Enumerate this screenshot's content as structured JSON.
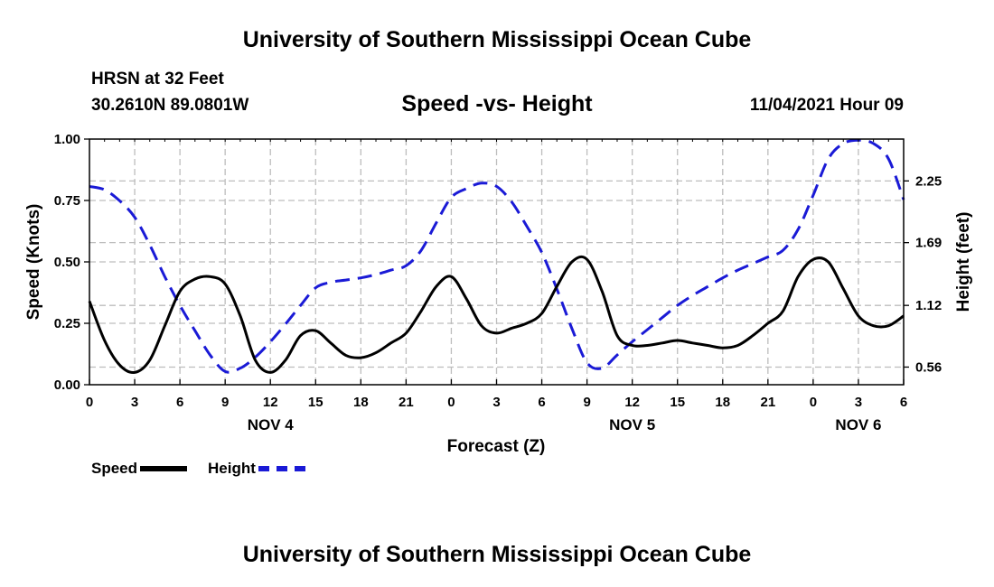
{
  "header": {
    "main_title": "University of Southern Mississippi Ocean Cube",
    "station": "HRSN at 32 Feet",
    "coords": "30.2610N  89.0801W",
    "date": "11/04/2021 Hour 09",
    "bottom_title": "University of Southern Mississippi Ocean Cube"
  },
  "colors": {
    "speed": "#000000",
    "height": "#1a1ad6",
    "grid": "#bdbdbd"
  },
  "chart_data": {
    "type": "line",
    "title": "Speed -vs- Height",
    "xlabel": "Forecast (Z)",
    "ylabel": "Speed (Knots)",
    "y2label": "Height (feet)",
    "x_unit": "hours from Nov 4 00Z",
    "xlim": [
      0,
      54
    ],
    "ylim": [
      0,
      1
    ],
    "y2lim": [
      0.4,
      2.63
    ],
    "x_ticks": [
      0,
      3,
      6,
      9,
      12,
      15,
      18,
      21,
      24,
      27,
      30,
      33,
      36,
      39,
      42,
      45,
      48,
      51,
      54
    ],
    "x_tick_labels": [
      "0",
      "3",
      "6",
      "9",
      "12",
      "15",
      "18",
      "21",
      "0",
      "3",
      "6",
      "9",
      "12",
      "15",
      "18",
      "21",
      "0",
      "3",
      "6"
    ],
    "y_ticks": [
      0,
      0.25,
      0.5,
      0.75,
      1
    ],
    "y_tick_labels": [
      "0.00",
      "0.25",
      "0.50",
      "0.75",
      "1.00"
    ],
    "y2_ticks": [
      0.56,
      1.12,
      1.69,
      2.25
    ],
    "y2_tick_labels": [
      "0.56",
      "1.12",
      "1.69",
      "2.25"
    ],
    "day_labels": [
      {
        "x": 12,
        "label": "NOV 4"
      },
      {
        "x": 36,
        "label": "NOV 5"
      },
      {
        "x": 51,
        "label": "NOV 6"
      }
    ],
    "series": [
      {
        "name": "Speed",
        "axis": "left",
        "x": [
          0,
          1,
          2,
          3,
          4,
          5,
          6,
          7,
          8,
          9,
          10,
          11,
          12,
          13,
          14,
          15,
          16,
          17,
          18,
          19,
          20,
          21,
          22,
          23,
          24,
          25,
          26,
          27,
          28,
          29,
          30,
          31,
          32,
          33,
          34,
          35,
          36,
          37,
          38,
          39,
          40,
          41,
          42,
          43,
          44,
          45,
          46,
          47,
          48,
          49,
          50,
          51,
          52,
          53,
          54
        ],
        "values": [
          0.34,
          0.18,
          0.08,
          0.05,
          0.1,
          0.24,
          0.38,
          0.43,
          0.44,
          0.41,
          0.28,
          0.1,
          0.05,
          0.1,
          0.2,
          0.22,
          0.17,
          0.12,
          0.11,
          0.13,
          0.17,
          0.21,
          0.3,
          0.4,
          0.44,
          0.35,
          0.24,
          0.21,
          0.23,
          0.25,
          0.29,
          0.4,
          0.5,
          0.51,
          0.38,
          0.2,
          0.16,
          0.16,
          0.17,
          0.18,
          0.17,
          0.16,
          0.15,
          0.16,
          0.2,
          0.25,
          0.3,
          0.44,
          0.51,
          0.5,
          0.39,
          0.28,
          0.24,
          0.24,
          0.28
        ]
      },
      {
        "name": "Height",
        "axis": "right",
        "x": [
          0,
          1,
          2,
          3,
          4,
          5,
          6,
          7,
          8,
          9,
          10,
          11,
          12,
          13,
          14,
          15,
          16,
          17,
          18,
          19,
          20,
          21,
          22,
          23,
          24,
          25,
          26,
          27,
          28,
          29,
          30,
          31,
          32,
          33,
          34,
          35,
          36,
          37,
          38,
          39,
          40,
          41,
          42,
          43,
          44,
          45,
          46,
          47,
          48,
          49,
          50,
          51,
          52,
          53,
          54
        ],
        "values": [
          2.2,
          2.17,
          2.07,
          1.92,
          1.67,
          1.38,
          1.12,
          0.89,
          0.67,
          0.52,
          0.55,
          0.65,
          0.79,
          0.95,
          1.12,
          1.28,
          1.33,
          1.35,
          1.37,
          1.4,
          1.44,
          1.48,
          1.62,
          1.87,
          2.1,
          2.18,
          2.23,
          2.2,
          2.06,
          1.84,
          1.6,
          1.27,
          0.91,
          0.6,
          0.55,
          0.67,
          0.79,
          0.9,
          1.01,
          1.12,
          1.21,
          1.29,
          1.37,
          1.44,
          1.5,
          1.56,
          1.62,
          1.81,
          2.12,
          2.45,
          2.59,
          2.62,
          2.59,
          2.45,
          2.08
        ]
      }
    ]
  }
}
